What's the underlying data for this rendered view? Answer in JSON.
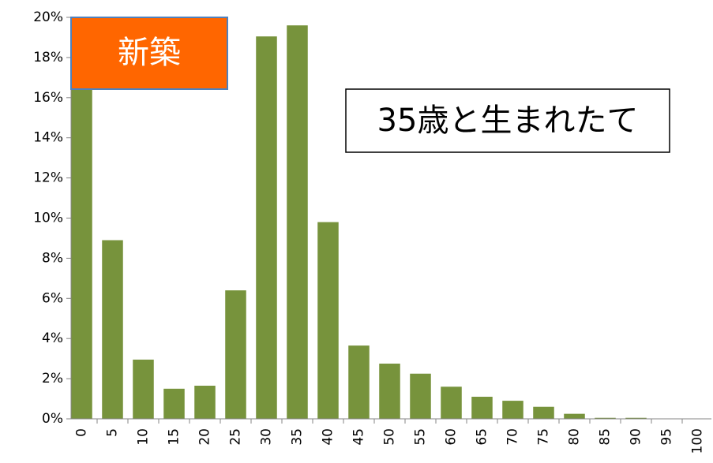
{
  "chart_data": {
    "type": "bar",
    "categories": [
      "0",
      "5",
      "10",
      "15",
      "20",
      "25",
      "30",
      "35",
      "40",
      "45",
      "50",
      "55",
      "60",
      "65",
      "70",
      "75",
      "80",
      "85",
      "90",
      "95",
      "100"
    ],
    "values": [
      18,
      8.9,
      2.95,
      1.5,
      1.65,
      6.4,
      19.05,
      19.6,
      9.8,
      3.65,
      2.75,
      2.25,
      1.6,
      1.1,
      0.9,
      0.6,
      0.25,
      0.05,
      0.05,
      0,
      0
    ],
    "color": "#77933c",
    "ylim": [
      0,
      20
    ],
    "yticks": [
      {
        "value": 0,
        "label": "0%"
      },
      {
        "value": 2,
        "label": "2%"
      },
      {
        "value": 4,
        "label": "4%"
      },
      {
        "value": 6,
        "label": "6%"
      },
      {
        "value": 8,
        "label": "8%"
      },
      {
        "value": 10,
        "label": "10%"
      },
      {
        "value": 12,
        "label": "12%"
      },
      {
        "value": 14,
        "label": "14%"
      },
      {
        "value": 16,
        "label": "16%"
      },
      {
        "value": 18,
        "label": "18%"
      },
      {
        "value": 20,
        "label": "20%"
      }
    ],
    "grid": false,
    "annotations": [
      "新築",
      "35歳と生まれたて"
    ]
  }
}
